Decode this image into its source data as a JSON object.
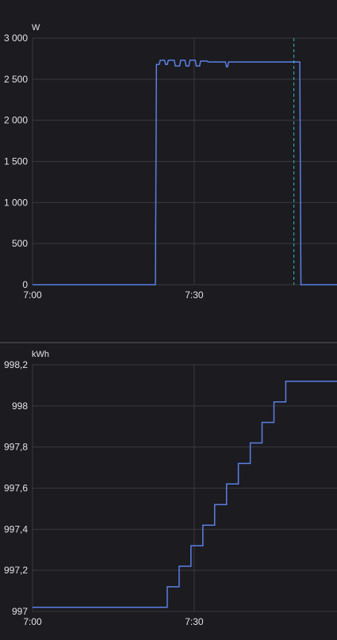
{
  "colors": {
    "background": "#1c1b1f",
    "grid": "#3a3a3e",
    "axis_text": "#e3e3e3",
    "series": "#5a7fe6",
    "cursor": "#2fb9c4"
  },
  "chart_data": [
    {
      "type": "line",
      "ylabel": "W",
      "ylim": [
        0,
        3000
      ],
      "yticks": [
        0,
        500,
        1000,
        1500,
        2000,
        2500,
        3000
      ],
      "ytick_labels": [
        "0",
        "500",
        "1 000",
        "1 500",
        "2 000",
        "2 500",
        "3 000"
      ],
      "xlim_minutes": [
        0,
        56.5
      ],
      "xticks_minutes": [
        0,
        30
      ],
      "xtick_labels": [
        "7:00",
        "7:30"
      ],
      "grid": true,
      "step": false,
      "cursor_x_minutes": 48.5,
      "series": [
        {
          "x": [
            0,
            22.8,
            23.0,
            23.5,
            23.7,
            24.5,
            24.7,
            25.0,
            25.2,
            26.3,
            26.5,
            27.3,
            27.5,
            28.3,
            28.5,
            29.0,
            29.2,
            30.2,
            30.4,
            31.0,
            31.2,
            32.4,
            32.6,
            35.8,
            36.0,
            36.2,
            36.4,
            37.2,
            49.6,
            49.8,
            56.5
          ],
          "y": [
            0,
            0,
            2680,
            2680,
            2730,
            2730,
            2680,
            2680,
            2730,
            2730,
            2660,
            2660,
            2730,
            2730,
            2660,
            2660,
            2730,
            2730,
            2660,
            2660,
            2720,
            2720,
            2710,
            2710,
            2650,
            2650,
            2710,
            2710,
            2710,
            0,
            0
          ]
        }
      ]
    },
    {
      "type": "line",
      "ylabel": "kWh",
      "ylim": [
        997,
        998.2
      ],
      "yticks": [
        997,
        997.2,
        997.4,
        997.6,
        997.8,
        998,
        998.2
      ],
      "ytick_labels": [
        "997",
        "997,2",
        "997,4",
        "997,6",
        "997,8",
        "998",
        "998,2"
      ],
      "xlim_minutes": [
        0,
        56.5
      ],
      "xticks_minutes": [
        0,
        30
      ],
      "xtick_labels": [
        "7:00",
        "7:30"
      ],
      "grid": true,
      "step": true,
      "series": [
        {
          "x": [
            0,
            25.0,
            27.2,
            29.4,
            31.6,
            33.8,
            36.0,
            38.2,
            40.4,
            42.6,
            44.8,
            47.0,
            56.5
          ],
          "y": [
            997.02,
            997.12,
            997.22,
            997.32,
            997.42,
            997.52,
            997.62,
            997.72,
            997.82,
            997.92,
            998.02,
            998.12,
            998.12
          ]
        }
      ]
    }
  ]
}
